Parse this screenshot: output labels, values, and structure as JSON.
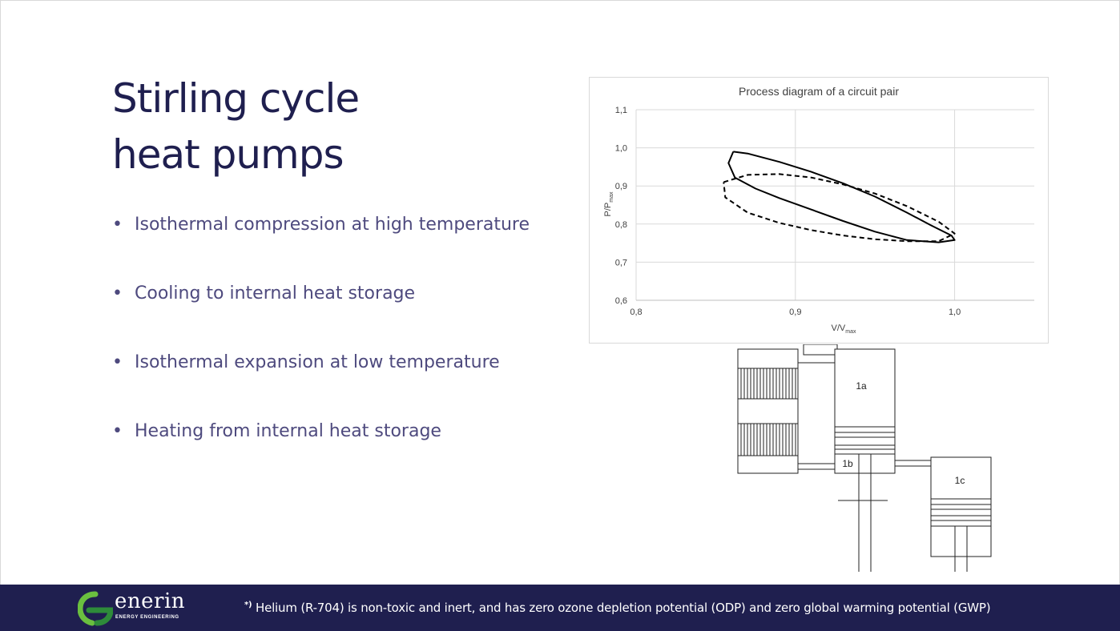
{
  "title": {
    "line1": "Stirling cycle",
    "line2": "heat pumps"
  },
  "bullets": [
    {
      "marker": "•",
      "text": "Isothermal compression at high temperature"
    },
    {
      "marker": "•",
      "text": "Cooling to internal heat storage"
    },
    {
      "marker": "•",
      "text": "Isothermal expansion at low temperature"
    },
    {
      "marker": "•",
      "text": "Heating from internal heat storage"
    }
  ],
  "chart_data": {
    "type": "line",
    "title": "Process diagram of a circuit pair",
    "xlabel_main": "V/V",
    "xlabel_sub": "max",
    "ylabel_main": "P/P",
    "ylabel_sub": "max",
    "xlim": [
      0.8,
      1.05
    ],
    "ylim": [
      0.6,
      1.1
    ],
    "x_ticks": [
      0.8,
      0.9,
      1.0
    ],
    "x_tick_labels": [
      "0,8",
      "0,9",
      "1,0"
    ],
    "y_ticks": [
      0.6,
      0.7,
      0.8,
      0.9,
      1.0,
      1.1
    ],
    "y_tick_labels": [
      "0,6",
      "0,7",
      "0,8",
      "0,9",
      "1,0",
      "1,1"
    ],
    "grid": true,
    "series": [
      {
        "style": "solid",
        "x": [
          0.861,
          0.87,
          0.89,
          0.91,
          0.93,
          0.95,
          0.97,
          0.985,
          0.998,
          1.0,
          0.99,
          0.97,
          0.95,
          0.93,
          0.91,
          0.89,
          0.875,
          0.862,
          0.858,
          0.861
        ],
        "y": [
          0.99,
          0.985,
          0.963,
          0.937,
          0.907,
          0.872,
          0.83,
          0.797,
          0.77,
          0.758,
          0.752,
          0.758,
          0.78,
          0.808,
          0.838,
          0.868,
          0.893,
          0.922,
          0.96,
          0.99
        ]
      },
      {
        "style": "dashed",
        "x": [
          0.855,
          0.87,
          0.89,
          0.91,
          0.93,
          0.95,
          0.97,
          0.99,
          1.0,
          0.99,
          0.97,
          0.95,
          0.93,
          0.91,
          0.89,
          0.87,
          0.856,
          0.855
        ],
        "y": [
          0.91,
          0.929,
          0.931,
          0.922,
          0.904,
          0.88,
          0.847,
          0.806,
          0.775,
          0.755,
          0.755,
          0.76,
          0.77,
          0.784,
          0.803,
          0.83,
          0.87,
          0.91
        ]
      }
    ]
  },
  "mechanism": {
    "labels": [
      "1a",
      "1b",
      "1c"
    ]
  },
  "footer": {
    "logo_name": "enerin",
    "logo_sub": "ENERGY ENGINEERING",
    "logo_colors": [
      "#6abf3f",
      "#2e8b3a"
    ],
    "footnote_marker": "*)",
    "footnote": "Helium (R-704) is non-toxic and inert, and has zero ozone depletion potential (ODP) and zero global warming potential (GWP)"
  }
}
